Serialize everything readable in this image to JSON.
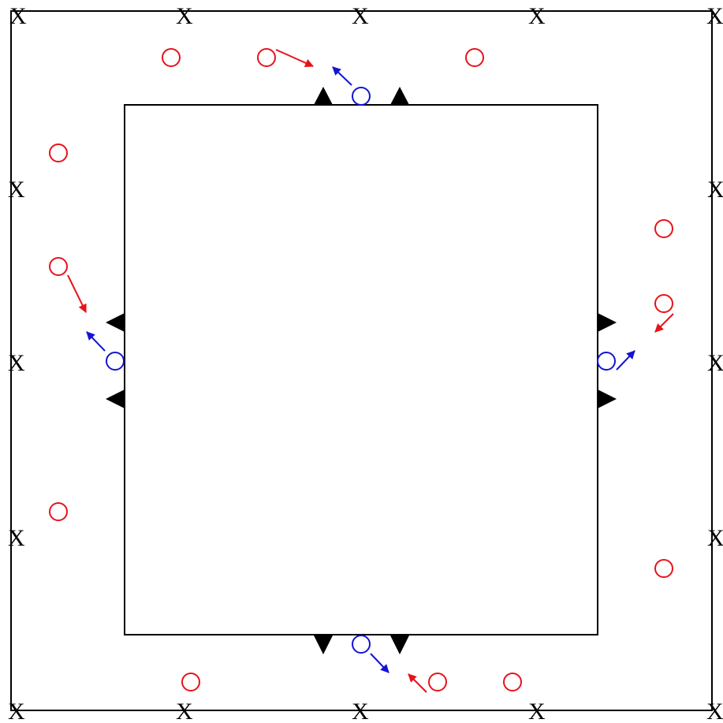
{
  "diagram": {
    "colors": {
      "background": "#ffffff",
      "frame": "#000000",
      "red": "#e8121a",
      "blue": "#1414d2",
      "cone": "#000000"
    },
    "marker_label": "X",
    "markers": [
      {
        "name": "x-top-1"
      },
      {
        "name": "x-top-2"
      },
      {
        "name": "x-top-3"
      },
      {
        "name": "x-top-4"
      },
      {
        "name": "x-top-5"
      },
      {
        "name": "x-bottom-1"
      },
      {
        "name": "x-bottom-2"
      },
      {
        "name": "x-bottom-3"
      },
      {
        "name": "x-bottom-4"
      },
      {
        "name": "x-bottom-5"
      },
      {
        "name": "x-left-1"
      },
      {
        "name": "x-left-2"
      },
      {
        "name": "x-left-3"
      },
      {
        "name": "x-right-1"
      },
      {
        "name": "x-right-2"
      },
      {
        "name": "x-right-3"
      }
    ],
    "red_players": 12,
    "blue_players": 4,
    "red_arrows": 4,
    "blue_arrows": 4,
    "cones": 8
  }
}
